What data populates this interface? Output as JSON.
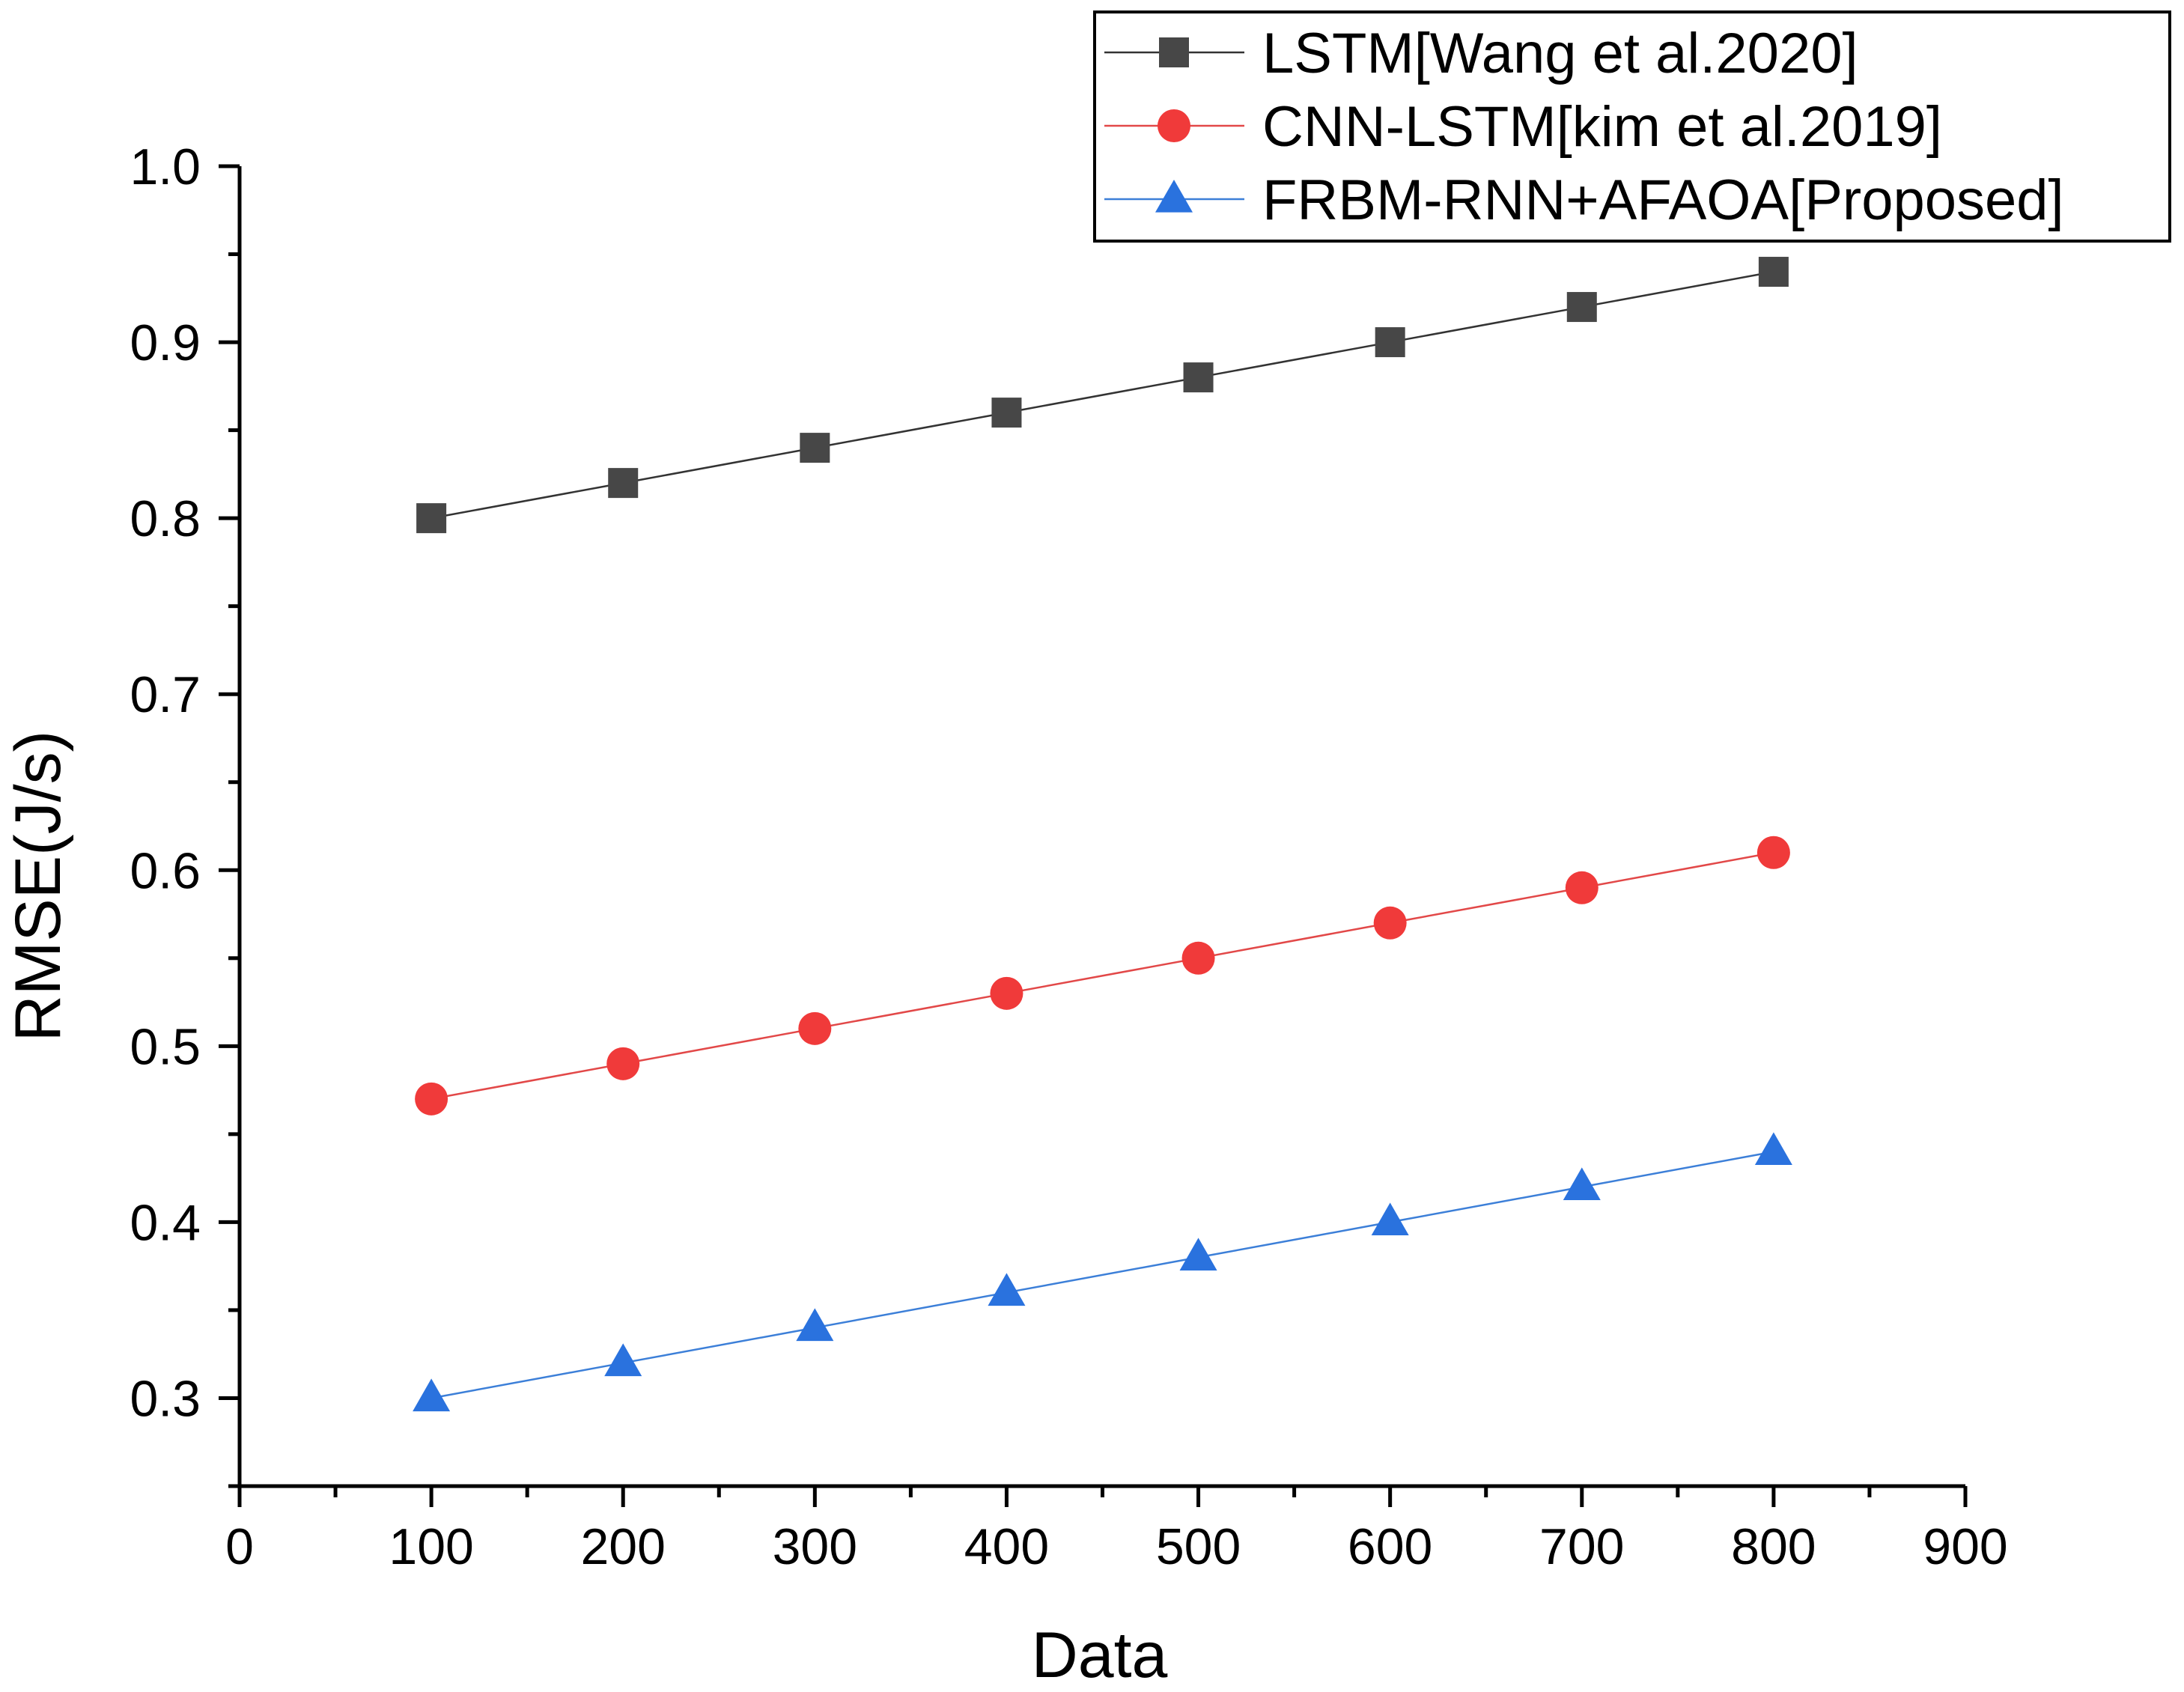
{
  "chart_data": {
    "type": "line",
    "title": "",
    "xlabel": "Data",
    "ylabel": "RMSE(J/s)",
    "xlim": [
      0,
      900
    ],
    "ylim": [
      0.25,
      1.0
    ],
    "x_ticks": [
      0,
      100,
      200,
      300,
      400,
      500,
      600,
      700,
      800,
      900
    ],
    "x_tick_labels": [
      "0",
      "100",
      "200",
      "300",
      "400",
      "500",
      "600",
      "700",
      "800",
      "900"
    ],
    "y_ticks": [
      0.3,
      0.4,
      0.5,
      0.6,
      0.7,
      0.8,
      0.9,
      1.0
    ],
    "y_tick_labels": [
      "0.3",
      "0.4",
      "0.5",
      "0.6",
      "0.7",
      "0.8",
      "0.9",
      "1.0"
    ],
    "x_minor_step": 50,
    "y_minor_step": 0.05,
    "grid": false,
    "legend_position": "top-right",
    "x": [
      100,
      200,
      300,
      400,
      500,
      600,
      700,
      800
    ],
    "series": [
      {
        "name": "LSTM[Wang et al.2020]",
        "values": [
          0.8,
          0.82,
          0.84,
          0.86,
          0.88,
          0.9,
          0.92,
          0.94
        ],
        "color": "#474747",
        "line_color": "#333333",
        "marker": "square"
      },
      {
        "name": "CNN-LSTM[kim et al.2019]",
        "values": [
          0.47,
          0.49,
          0.51,
          0.53,
          0.55,
          0.57,
          0.59,
          0.61
        ],
        "color": "#f03a3a",
        "line_color": "#e24848",
        "marker": "circle"
      },
      {
        "name": "FRBM-RNN+AFAOA[Proposed]",
        "values": [
          0.3,
          0.32,
          0.34,
          0.36,
          0.38,
          0.4,
          0.42,
          0.44
        ],
        "color": "#2a72de",
        "line_color": "#3c7fd8",
        "marker": "triangle"
      }
    ]
  }
}
